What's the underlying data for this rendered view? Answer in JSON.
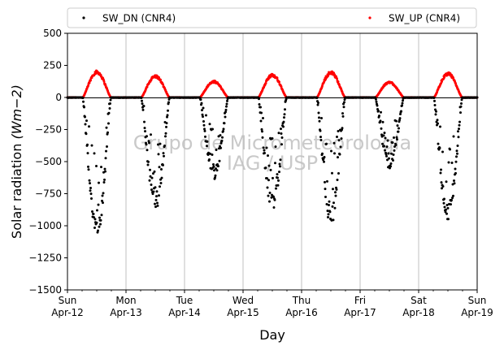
{
  "chart_data": {
    "type": "scatter",
    "ylabel": "Solar radiation",
    "ylabel_unit": "(Wm−2)",
    "xlabel": "Day",
    "ylim": [
      -1500,
      500
    ],
    "yticks": [
      500,
      250,
      0,
      -250,
      -500,
      -750,
      -1000,
      -1250,
      -1500
    ],
    "xlim": [
      "2020-04-12",
      "2020-04-19"
    ],
    "xticks": [
      {
        "day": "Sun",
        "date": "Apr-12"
      },
      {
        "day": "Mon",
        "date": "Apr-13"
      },
      {
        "day": "Tue",
        "date": "Apr-14"
      },
      {
        "day": "Wed",
        "date": "Apr-15"
      },
      {
        "day": "Thu",
        "date": "Apr-16"
      },
      {
        "day": "Fri",
        "date": "Apr-17"
      },
      {
        "day": "Sat",
        "date": "Apr-18"
      },
      {
        "day": "Sun",
        "date": "Apr-19"
      }
    ],
    "grid": "vertical",
    "legend_placement": "top",
    "watermark": [
      "Grupo de Micrometeorologia",
      "IAG / USP"
    ],
    "series": [
      {
        "name": "SW_DN (CNR4)",
        "color": "#000000",
        "days": [
          {
            "date": "2020-04-12",
            "peak": -1100
          },
          {
            "date": "2020-04-13",
            "peak": -880
          },
          {
            "date": "2020-04-14",
            "peak": -640
          },
          {
            "date": "2020-04-15",
            "peak": -890
          },
          {
            "date": "2020-04-16",
            "peak": -1000
          },
          {
            "date": "2020-04-17",
            "peak": -560
          },
          {
            "date": "2020-04-18",
            "peak": -980
          }
        ]
      },
      {
        "name": "SW_UP (CNR4)",
        "color": "#ff0000",
        "days": [
          {
            "date": "2020-04-12",
            "peak": 210
          },
          {
            "date": "2020-04-13",
            "peak": 175
          },
          {
            "date": "2020-04-14",
            "peak": 130
          },
          {
            "date": "2020-04-15",
            "peak": 185
          },
          {
            "date": "2020-04-16",
            "peak": 205
          },
          {
            "date": "2020-04-17",
            "peak": 125
          },
          {
            "date": "2020-04-18",
            "peak": 195
          }
        ]
      }
    ]
  }
}
